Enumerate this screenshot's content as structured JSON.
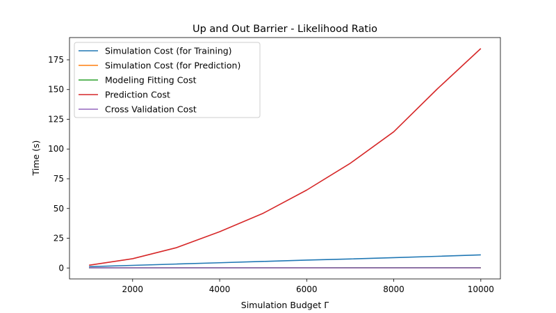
{
  "chart_data": {
    "type": "line",
    "title": "Up and Out Barrier - Likelihood Ratio",
    "xlabel": "Simulation Budget Γ",
    "ylabel": "Time (s)",
    "xlim": [
      550,
      10450
    ],
    "ylim": [
      -9.2,
      193.7
    ],
    "xticks": [
      2000,
      4000,
      6000,
      8000,
      10000
    ],
    "yticks": [
      0,
      25,
      50,
      75,
      100,
      125,
      150,
      175
    ],
    "grid": false,
    "legend_position": "upper-left",
    "x": [
      1000,
      2000,
      3000,
      4000,
      5000,
      6000,
      7000,
      8000,
      9000,
      10000
    ],
    "series": [
      {
        "name": "Simulation Cost (for Training)",
        "color": "#1f77b4",
        "values": [
          1.1,
          2.2,
          3.3,
          4.4,
          5.5,
          6.6,
          7.6,
          8.7,
          9.8,
          11.0
        ]
      },
      {
        "name": "Simulation Cost (for Prediction)",
        "color": "#ff7f0e",
        "values": [
          0.02,
          0.02,
          0.02,
          0.02,
          0.02,
          0.02,
          0.02,
          0.02,
          0.02,
          0.02
        ]
      },
      {
        "name": "Modeling Fitting Cost",
        "color": "#2ca02c",
        "values": [
          0.05,
          0.07,
          0.09,
          0.11,
          0.13,
          0.15,
          0.17,
          0.19,
          0.21,
          0.23
        ]
      },
      {
        "name": "Prediction Cost",
        "color": "#d62728",
        "values": [
          2.3,
          7.8,
          17.0,
          30.5,
          46.0,
          65.5,
          88.0,
          114.5,
          150.5,
          184.5
        ]
      },
      {
        "name": "Cross Validation Cost",
        "color": "#9467bd",
        "values": [
          0.1,
          0.1,
          0.1,
          0.1,
          0.1,
          0.1,
          0.1,
          0.1,
          0.1,
          0.1
        ]
      }
    ]
  }
}
